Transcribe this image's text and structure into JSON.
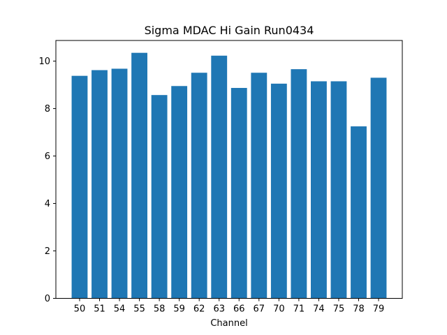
{
  "chart_data": {
    "type": "bar",
    "title": "Sigma MDAC Hi Gain Run0434",
    "xlabel": "Channel",
    "ylabel": "",
    "categories": [
      "50",
      "51",
      "54",
      "55",
      "58",
      "59",
      "62",
      "63",
      "66",
      "67",
      "70",
      "71",
      "74",
      "75",
      "78",
      "79"
    ],
    "values": [
      9.38,
      9.62,
      9.68,
      10.35,
      8.57,
      8.95,
      9.51,
      10.23,
      8.87,
      9.51,
      9.05,
      9.66,
      9.15,
      9.15,
      7.25,
      9.3
    ],
    "ylim": [
      0,
      10.87
    ],
    "yticks": [
      0,
      2,
      4,
      6,
      8,
      10
    ],
    "bar_color": "#1f77b4",
    "grid": false,
    "legend": "none"
  }
}
